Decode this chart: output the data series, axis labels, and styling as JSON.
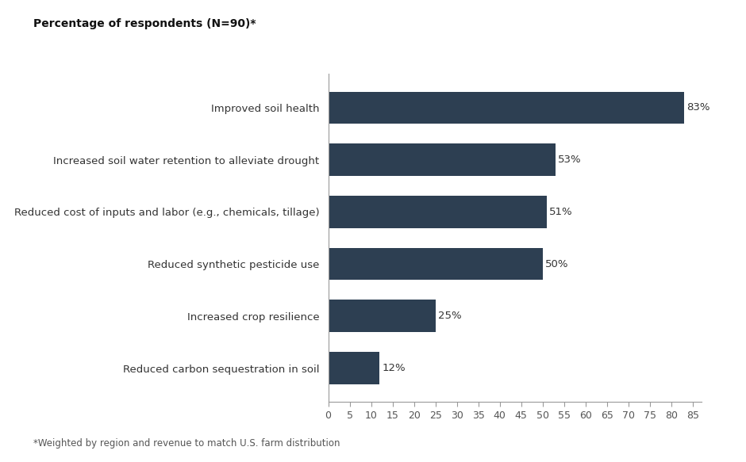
{
  "categories": [
    "Reduced carbon sequestration in soil",
    "Increased crop resilience",
    "Reduced synthetic pesticide use",
    "Reduced cost of inputs and labor (e.g., chemicals, tillage)",
    "Increased soil water retention to alleviate drought",
    "Improved soil health"
  ],
  "values": [
    12,
    25,
    50,
    51,
    53,
    83
  ],
  "labels": [
    "12%",
    "25%",
    "50%",
    "51%",
    "53%",
    "83%"
  ],
  "bar_color": "#2d3f52",
  "background_color": "#ffffff",
  "title": "Percentage of respondents (N=90)*",
  "footnote": "*Weighted by region and revenue to match U.S. farm distribution",
  "xlim": [
    0,
    87
  ],
  "xticks": [
    0,
    5,
    10,
    15,
    20,
    25,
    30,
    35,
    40,
    45,
    50,
    55,
    60,
    65,
    70,
    75,
    80,
    85
  ],
  "bar_height": 0.62,
  "title_fontsize": 10,
  "label_fontsize": 9.5,
  "tick_fontsize": 9,
  "footnote_fontsize": 8.5
}
